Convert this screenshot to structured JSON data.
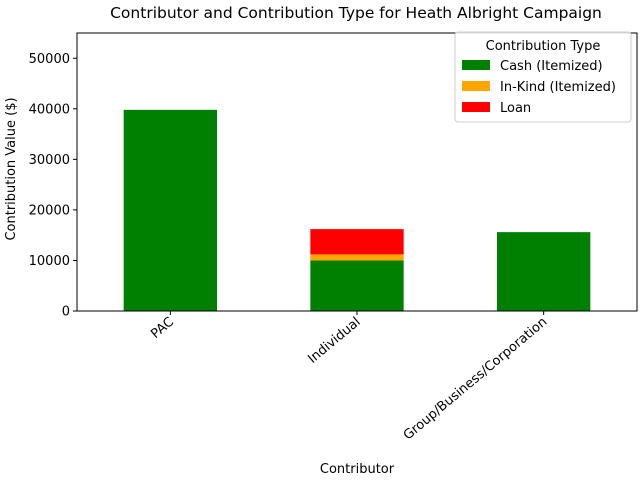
{
  "chart_data": {
    "type": "bar",
    "stacked": true,
    "title": "Contributor and Contribution Type for Heath Albright Campaign",
    "xlabel": "Contributor",
    "ylabel": "Contribution Value ($)",
    "categories": [
      "PAC",
      "Individual",
      "Group/Business/Corporation"
    ],
    "series": [
      {
        "name": "Cash (Itemized)",
        "color": "#008000",
        "values": [
          39800,
          10000,
          15600
        ]
      },
      {
        "name": "In-Kind (Itemized)",
        "color": "#ffa500",
        "values": [
          0,
          1200,
          0
        ]
      },
      {
        "name": "Loan",
        "color": "#ff0000",
        "values": [
          0,
          5000,
          0
        ]
      }
    ],
    "ylim": [
      0,
      55000
    ],
    "yticks": [
      0,
      10000,
      20000,
      30000,
      40000,
      50000
    ],
    "grid": false,
    "legend": {
      "title": "Contribution Type",
      "placement": "top-right"
    }
  }
}
